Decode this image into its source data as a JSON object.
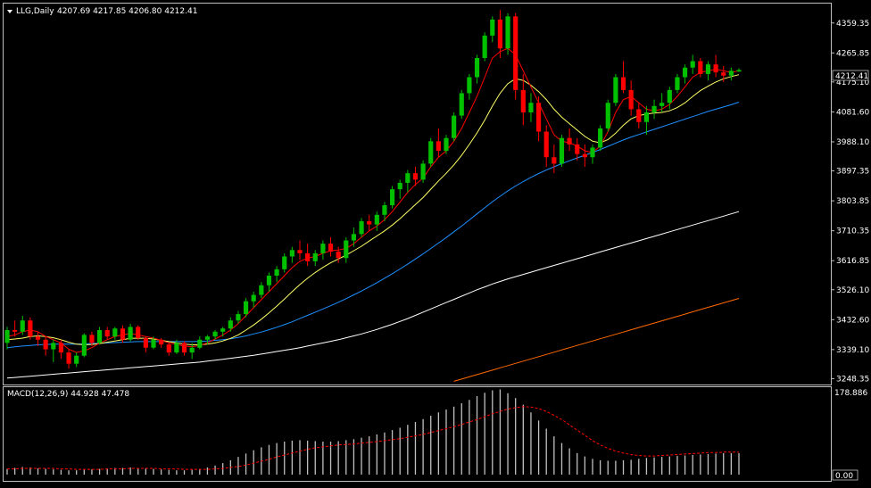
{
  "header": {
    "symbol_timeframe": "LLG,Daily",
    "ohlc": "4207.69 4217.85 4206.80 4212.41"
  },
  "price_axis": {
    "ticks": [
      "4359.35",
      "4265.85",
      "4175.10",
      "4081.60",
      "3988.10",
      "3897.35",
      "3803.85",
      "3710.35",
      "3616.85",
      "3526.10",
      "3432.60",
      "3339.10",
      "3248.35"
    ],
    "current_price_label": "4212.41"
  },
  "macd": {
    "label": "MACD(12,26,9) 44.928 47.478",
    "scale_top_label": "178.886",
    "scale_bottom_label": "0.00"
  },
  "colors": {
    "background": "#000000",
    "bull_candle": "#00c000",
    "bear_candle": "#ff0000",
    "ma_fast": "#ff0000",
    "ma_slow": "#ffff66",
    "ma_50": "#1e90ff",
    "ma_100": "#ffffff",
    "ma_200": "#ff6a00",
    "macd_histogram": "#c0c0c0",
    "macd_signal": "#ff0000",
    "grid_frame": "#c0c0c0"
  },
  "chart_data": {
    "type": "candlestick",
    "ylim": [
      3230,
      4420
    ],
    "candles": [
      [
        3360,
        3410,
        3340,
        3400
      ],
      [
        3400,
        3430,
        3380,
        3395
      ],
      [
        3395,
        3445,
        3385,
        3430
      ],
      [
        3430,
        3440,
        3370,
        3380
      ],
      [
        3380,
        3395,
        3350,
        3370
      ],
      [
        3370,
        3380,
        3320,
        3340
      ],
      [
        3340,
        3370,
        3300,
        3360
      ],
      [
        3360,
        3370,
        3310,
        3330
      ],
      [
        3330,
        3340,
        3280,
        3295
      ],
      [
        3295,
        3330,
        3285,
        3320
      ],
      [
        3320,
        3390,
        3315,
        3385
      ],
      [
        3385,
        3395,
        3350,
        3360
      ],
      [
        3360,
        3410,
        3355,
        3400
      ],
      [
        3400,
        3410,
        3370,
        3380
      ],
      [
        3380,
        3410,
        3370,
        3405
      ],
      [
        3405,
        3415,
        3360,
        3370
      ],
      [
        3370,
        3420,
        3365,
        3410
      ],
      [
        3410,
        3415,
        3370,
        3375
      ],
      [
        3375,
        3380,
        3330,
        3345
      ],
      [
        3345,
        3380,
        3340,
        3370
      ],
      [
        3370,
        3375,
        3345,
        3355
      ],
      [
        3355,
        3360,
        3320,
        3330
      ],
      [
        3330,
        3370,
        3325,
        3360
      ],
      [
        3360,
        3365,
        3320,
        3330
      ],
      [
        3330,
        3360,
        3310,
        3345
      ],
      [
        3345,
        3380,
        3340,
        3370
      ],
      [
        3370,
        3385,
        3355,
        3380
      ],
      [
        3380,
        3400,
        3370,
        3395
      ],
      [
        3395,
        3410,
        3380,
        3405
      ],
      [
        3405,
        3440,
        3395,
        3430
      ],
      [
        3430,
        3460,
        3420,
        3450
      ],
      [
        3450,
        3500,
        3440,
        3490
      ],
      [
        3490,
        3520,
        3470,
        3510
      ],
      [
        3510,
        3550,
        3500,
        3540
      ],
      [
        3540,
        3580,
        3520,
        3570
      ],
      [
        3570,
        3600,
        3550,
        3590
      ],
      [
        3590,
        3640,
        3580,
        3630
      ],
      [
        3630,
        3660,
        3610,
        3650
      ],
      [
        3650,
        3680,
        3620,
        3640
      ],
      [
        3640,
        3670,
        3600,
        3615
      ],
      [
        3615,
        3650,
        3600,
        3640
      ],
      [
        3640,
        3680,
        3620,
        3670
      ],
      [
        3670,
        3690,
        3630,
        3645
      ],
      [
        3645,
        3660,
        3610,
        3625
      ],
      [
        3625,
        3690,
        3610,
        3680
      ],
      [
        3680,
        3720,
        3660,
        3700
      ],
      [
        3700,
        3750,
        3690,
        3740
      ],
      [
        3740,
        3760,
        3710,
        3730
      ],
      [
        3730,
        3770,
        3710,
        3760
      ],
      [
        3760,
        3800,
        3740,
        3790
      ],
      [
        3790,
        3850,
        3780,
        3840
      ],
      [
        3840,
        3870,
        3810,
        3860
      ],
      [
        3860,
        3900,
        3830,
        3890
      ],
      [
        3890,
        3910,
        3850,
        3870
      ],
      [
        3870,
        3930,
        3860,
        3920
      ],
      [
        3920,
        4000,
        3910,
        3990
      ],
      [
        3990,
        4030,
        3940,
        3960
      ],
      [
        3960,
        4010,
        3950,
        4000
      ],
      [
        4000,
        4080,
        3990,
        4070
      ],
      [
        4070,
        4150,
        4060,
        4140
      ],
      [
        4140,
        4200,
        4120,
        4190
      ],
      [
        4190,
        4260,
        4170,
        4250
      ],
      [
        4250,
        4330,
        4240,
        4320
      ],
      [
        4320,
        4380,
        4300,
        4370
      ],
      [
        4370,
        4400,
        4250,
        4280
      ],
      [
        4280,
        4390,
        4260,
        4380
      ],
      [
        4380,
        4390,
        4120,
        4150
      ],
      [
        4150,
        4200,
        4040,
        4080
      ],
      [
        4080,
        4140,
        4050,
        4110
      ],
      [
        4110,
        4130,
        3990,
        4020
      ],
      [
        4020,
        4040,
        3910,
        3940
      ],
      [
        3940,
        3980,
        3890,
        3920
      ],
      [
        3920,
        4010,
        3910,
        4000
      ],
      [
        4000,
        4030,
        3960,
        3980
      ],
      [
        3980,
        4000,
        3930,
        3950
      ],
      [
        3950,
        3980,
        3910,
        3940
      ],
      [
        3940,
        3980,
        3920,
        3970
      ],
      [
        3970,
        4040,
        3960,
        4030
      ],
      [
        4030,
        4120,
        4020,
        4110
      ],
      [
        4110,
        4200,
        4100,
        4190
      ],
      [
        4190,
        4240,
        4140,
        4150
      ],
      [
        4150,
        4180,
        4070,
        4090
      ],
      [
        4090,
        4110,
        4030,
        4050
      ],
      [
        4050,
        4100,
        4010,
        4080
      ],
      [
        4080,
        4120,
        4060,
        4100
      ],
      [
        4100,
        4140,
        4080,
        4110
      ],
      [
        4110,
        4160,
        4090,
        4150
      ],
      [
        4150,
        4200,
        4140,
        4190
      ],
      [
        4190,
        4230,
        4170,
        4220
      ],
      [
        4220,
        4260,
        4200,
        4240
      ],
      [
        4240,
        4250,
        4190,
        4200
      ],
      [
        4200,
        4240,
        4180,
        4230
      ],
      [
        4230,
        4260,
        4190,
        4205
      ],
      [
        4205,
        4225,
        4175,
        4195
      ],
      [
        4195,
        4220,
        4180,
        4210
      ],
      [
        4207.69,
        4217.85,
        4206.8,
        4212.41
      ]
    ],
    "ma_fast": [
      3380,
      3385,
      3395,
      3400,
      3395,
      3380,
      3370,
      3360,
      3340,
      3330,
      3335,
      3345,
      3360,
      3370,
      3380,
      3385,
      3390,
      3385,
      3380,
      3375,
      3368,
      3360,
      3355,
      3350,
      3348,
      3352,
      3360,
      3372,
      3385,
      3400,
      3420,
      3445,
      3470,
      3495,
      3520,
      3545,
      3570,
      3595,
      3615,
      3625,
      3630,
      3640,
      3648,
      3650,
      3655,
      3670,
      3690,
      3710,
      3725,
      3745,
      3770,
      3800,
      3830,
      3855,
      3875,
      3910,
      3940,
      3960,
      3990,
      4030,
      4080,
      4130,
      4190,
      4250,
      4270,
      4280,
      4260,
      4210,
      4160,
      4110,
      4060,
      4010,
      3990,
      3985,
      3975,
      3960,
      3955,
      3975,
      4020,
      4080,
      4120,
      4130,
      4110,
      4090,
      4085,
      4090,
      4105,
      4130,
      4160,
      4190,
      4205,
      4210,
      4215,
      4210,
      4205,
      4210
    ],
    "ma_slow": [
      3370,
      3372,
      3375,
      3380,
      3382,
      3380,
      3376,
      3370,
      3362,
      3356,
      3354,
      3355,
      3358,
      3362,
      3366,
      3370,
      3374,
      3375,
      3374,
      3372,
      3368,
      3364,
      3360,
      3356,
      3354,
      3354,
      3356,
      3360,
      3366,
      3374,
      3385,
      3400,
      3416,
      3434,
      3454,
      3475,
      3497,
      3520,
      3542,
      3562,
      3580,
      3596,
      3610,
      3622,
      3634,
      3648,
      3662,
      3678,
      3694,
      3710,
      3728,
      3748,
      3770,
      3792,
      3814,
      3840,
      3866,
      3890,
      3916,
      3946,
      3980,
      4016,
      4056,
      4100,
      4140,
      4170,
      4185,
      4180,
      4165,
      4145,
      4120,
      4090,
      4065,
      4045,
      4025,
      4005,
      3990,
      3985,
      3995,
      4015,
      4040,
      4060,
      4070,
      4075,
      4078,
      4080,
      4085,
      4095,
      4110,
      4130,
      4148,
      4162,
      4175,
      4185,
      4192,
      4198
    ],
    "ma_50": [
      3345,
      3348,
      3350,
      3352,
      3354,
      3355,
      3356,
      3356,
      3356,
      3356,
      3357,
      3358,
      3359,
      3360,
      3361,
      3362,
      3363,
      3364,
      3364,
      3364,
      3364,
      3364,
      3364,
      3364,
      3364,
      3365,
      3366,
      3368,
      3370,
      3373,
      3377,
      3382,
      3388,
      3394,
      3401,
      3409,
      3417,
      3426,
      3436,
      3446,
      3456,
      3466,
      3476,
      3487,
      3498,
      3510,
      3522,
      3535,
      3548,
      3562,
      3576,
      3591,
      3606,
      3622,
      3638,
      3655,
      3672,
      3689,
      3707,
      3725,
      3744,
      3763,
      3782,
      3801,
      3818,
      3835,
      3850,
      3864,
      3877,
      3889,
      3900,
      3910,
      3920,
      3929,
      3938,
      3946,
      3955,
      3964,
      3974,
      3984,
      3994,
      4003,
      4011,
      4019,
      4027,
      4035,
      4043,
      4051,
      4059,
      4067,
      4075,
      4083,
      4090,
      4097,
      4104,
      4112
    ],
    "ma_100": [
      3250,
      3252,
      3254,
      3256,
      3258,
      3260,
      3262,
      3264,
      3266,
      3268,
      3270,
      3272,
      3274,
      3276,
      3278,
      3280,
      3282,
      3284,
      3286,
      3288,
      3290,
      3292,
      3294,
      3296,
      3298,
      3300,
      3303,
      3306,
      3309,
      3312,
      3315,
      3318,
      3321,
      3325,
      3329,
      3333,
      3337,
      3341,
      3345,
      3350,
      3355,
      3360,
      3365,
      3370,
      3376,
      3382,
      3388,
      3395,
      3402,
      3410,
      3418,
      3427,
      3436,
      3446,
      3456,
      3466,
      3476,
      3486,
      3496,
      3506,
      3516,
      3526,
      3535,
      3544,
      3552,
      3560,
      3567,
      3574,
      3581,
      3588,
      3595,
      3602,
      3609,
      3616,
      3623,
      3630,
      3637,
      3644,
      3651,
      3658,
      3665,
      3672,
      3679,
      3686,
      3693,
      3700,
      3707,
      3714,
      3721,
      3728,
      3735,
      3742,
      3749,
      3756,
      3763,
      3770
    ],
    "ma_200": [
      null,
      null,
      null,
      null,
      null,
      null,
      null,
      null,
      null,
      null,
      null,
      null,
      null,
      null,
      null,
      null,
      null,
      null,
      null,
      null,
      null,
      null,
      null,
      null,
      null,
      null,
      null,
      null,
      null,
      null,
      null,
      null,
      null,
      null,
      null,
      null,
      null,
      null,
      null,
      null,
      null,
      null,
      null,
      null,
      null,
      null,
      null,
      null,
      null,
      null,
      null,
      null,
      null,
      null,
      null,
      null,
      null,
      null,
      3240,
      3247,
      3254,
      3261,
      3268,
      3275,
      3282,
      3289,
      3296,
      3303,
      3310,
      3317,
      3324,
      3331,
      3338,
      3345,
      3352,
      3359,
      3366,
      3373,
      3380,
      3387,
      3394,
      3401,
      3408,
      3415,
      3422,
      3429,
      3436,
      3443,
      3450,
      3457,
      3464,
      3471,
      3478,
      3485,
      3492,
      3499
    ],
    "macd_ylim": [
      0,
      178.886
    ],
    "macd_hist": [
      12,
      14,
      16,
      15,
      13,
      12,
      11,
      10,
      9,
      9,
      10,
      11,
      12,
      13,
      14,
      14,
      15,
      14,
      13,
      12,
      11,
      10,
      9,
      9,
      10,
      12,
      15,
      19,
      24,
      30,
      37,
      44,
      51,
      57,
      62,
      66,
      69,
      71,
      72,
      71,
      70,
      69,
      69,
      70,
      72,
      74,
      77,
      80,
      84,
      88,
      93,
      98,
      104,
      110,
      116,
      123,
      130,
      136,
      142,
      149,
      156,
      164,
      171,
      176,
      178,
      170,
      160,
      146,
      130,
      113,
      96,
      80,
      66,
      55,
      45,
      38,
      33,
      30,
      29,
      29,
      30,
      31,
      33,
      35,
      36,
      37,
      38,
      39,
      40,
      41,
      42,
      43,
      44,
      45,
      45,
      45
    ],
    "macd_signal": [
      12,
      12,
      13,
      13,
      13,
      13,
      13,
      12,
      12,
      11,
      11,
      11,
      11,
      12,
      12,
      12,
      13,
      13,
      13,
      13,
      12,
      12,
      12,
      11,
      11,
      11,
      11,
      12,
      13,
      15,
      17,
      20,
      24,
      28,
      32,
      37,
      41,
      45,
      49,
      53,
      56,
      58,
      60,
      62,
      63,
      64,
      66,
      67,
      69,
      71,
      73,
      75,
      78,
      81,
      84,
      88,
      92,
      96,
      100,
      105,
      110,
      115,
      121,
      127,
      132,
      137,
      140,
      142,
      141,
      138,
      132,
      124,
      115,
      104,
      93,
      82,
      71,
      62,
      55,
      49,
      45,
      42,
      40,
      39,
      39,
      40,
      41,
      42,
      43,
      44,
      45,
      46,
      46,
      47,
      47,
      47
    ]
  }
}
